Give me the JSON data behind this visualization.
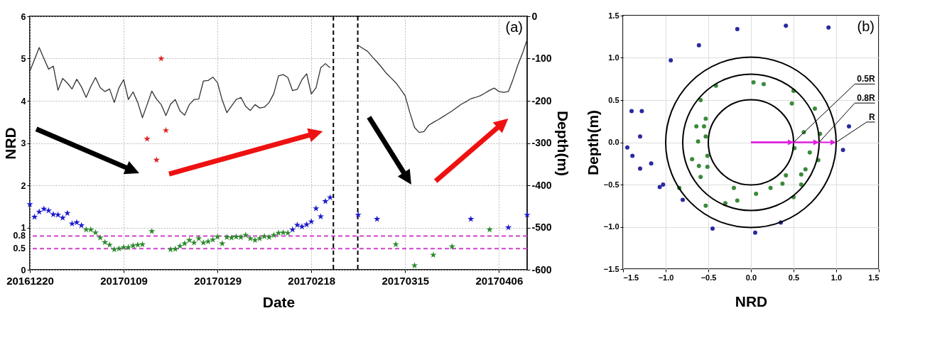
{
  "chart_data": [
    {
      "type": "scatter",
      "xlabel": "Date",
      "ylabel": "NRD",
      "y2label": "Depth(m)",
      "categories": [
        "20161220",
        null,
        null,
        null,
        null,
        null,
        null,
        null,
        null,
        null,
        null,
        null,
        null,
        null,
        null,
        null,
        null,
        null,
        null,
        null,
        "20170109",
        null,
        null,
        null,
        null,
        null,
        null,
        null,
        null,
        null,
        null,
        null,
        null,
        null,
        null,
        null,
        null,
        null,
        null,
        null,
        "20170129",
        null,
        null,
        null,
        null,
        null,
        null,
        null,
        null,
        null,
        null,
        null,
        null,
        null,
        null,
        null,
        null,
        null,
        null,
        null,
        "20170218",
        null,
        null,
        null,
        null,
        null,
        null,
        null,
        null,
        null,
        null,
        null,
        null,
        null,
        null,
        null,
        null,
        null,
        null,
        null,
        "20170315",
        null,
        null,
        null,
        null,
        null,
        null,
        null,
        null,
        null,
        null,
        null,
        null,
        null,
        null,
        null,
        null,
        null,
        null,
        null,
        "20170406",
        null,
        null,
        null,
        null,
        null,
        null
      ],
      "ylim": [
        0,
        6
      ],
      "yticks": [
        0,
        1,
        2,
        3,
        4,
        5,
        6
      ],
      "y2lim": [
        -600,
        0
      ],
      "y2ticks": [
        -600,
        -500,
        -400,
        -300,
        -200,
        -100,
        0
      ],
      "grid": true,
      "marker": "star",
      "ref_lines": [
        {
          "axis": "y",
          "value": 0.8,
          "label": "0.8",
          "color": "#cc44cc",
          "line_style": "dashed"
        },
        {
          "axis": "y",
          "value": 0.5,
          "label": "0.5",
          "color": "#cc44cc",
          "line_style": "dashed"
        }
      ],
      "annotations": [
        "(a)"
      ],
      "series": [
        {
          "type": "line",
          "axis": "y2",
          "color": "#333333",
          "line_style": "solid",
          "marker": "none",
          "values": [
            -130,
            -102,
            -74,
            -100,
            -125,
            -118,
            -175,
            -147,
            -158,
            -172,
            -149,
            -167,
            -192,
            -166,
            -145,
            -169,
            -178,
            -172,
            -204,
            -169,
            -150,
            -197,
            -179,
            -204,
            -240,
            -209,
            -177,
            -196,
            -209,
            -235,
            -208,
            -197,
            -224,
            -234,
            -209,
            -197,
            -196,
            -153,
            -152,
            -144,
            -157,
            -198,
            -228,
            -212,
            -197,
            -192,
            -213,
            -223,
            -209,
            -217,
            -215,
            -204,
            -183,
            -141,
            -138,
            -145,
            -176,
            -173,
            -150,
            -136,
            -184,
            -169,
            -122,
            -112,
            -122,
            null,
            null,
            null,
            null,
            null,
            -69,
            -76,
            -83,
            -96,
            -108,
            -121,
            -135,
            -146,
            -157,
            -172,
            -188,
            -228,
            -263,
            -275,
            -273,
            -258,
            -251,
            -245,
            -238,
            -231,
            -224,
            -216,
            -208,
            -202,
            -195,
            -192,
            -188,
            -182,
            -175,
            -170,
            -178,
            -180,
            -178,
            -149,
            -116,
            -88,
            -55
          ]
        },
        {
          "color": "#1a1acc",
          "values": [
            1.55,
            1.25,
            1.37,
            1.44,
            1.4,
            1.31,
            1.3,
            1.23,
            1.34,
            1.09,
            1.12,
            1.05,
            null,
            null,
            null,
            null,
            null,
            null,
            null,
            null,
            null,
            null,
            null,
            null,
            null,
            null,
            null,
            null,
            null,
            null,
            null,
            null,
            null,
            null,
            null,
            null,
            null,
            null,
            null,
            null,
            null,
            null,
            null,
            null,
            null,
            null,
            null,
            null,
            null,
            null,
            null,
            null,
            null,
            null,
            null,
            null,
            0.95,
            1.06,
            1.02,
            1.07,
            1.14,
            1.45,
            1.26,
            1.62,
            1.71,
            null,
            null,
            null,
            null,
            null,
            1.3,
            null,
            null,
            null,
            1.2,
            null,
            null,
            null,
            null,
            null,
            null,
            null,
            null,
            null,
            null,
            null,
            null,
            null,
            null,
            null,
            null,
            null,
            null,
            null,
            1.2,
            null,
            null,
            null,
            null,
            null,
            null,
            null,
            1.0,
            null,
            null,
            null,
            1.3
          ]
        },
        {
          "color": "#2a8a2a",
          "values": [
            null,
            null,
            null,
            null,
            null,
            null,
            null,
            null,
            null,
            null,
            null,
            null,
            0.95,
            0.95,
            0.88,
            0.76,
            0.65,
            0.59,
            0.48,
            0.5,
            0.53,
            0.53,
            0.57,
            0.59,
            0.6,
            null,
            0.91,
            null,
            null,
            null,
            0.48,
            0.49,
            0.56,
            0.62,
            0.7,
            0.64,
            0.74,
            0.64,
            0.67,
            0.71,
            0.78,
            0.62,
            0.77,
            0.76,
            0.78,
            0.77,
            0.82,
            0.74,
            0.7,
            0.74,
            0.79,
            0.77,
            0.82,
            0.87,
            0.88,
            0.87,
            null,
            null,
            null,
            null,
            null,
            null,
            null,
            null,
            null,
            null,
            null,
            null,
            null,
            null,
            null,
            null,
            null,
            null,
            null,
            null,
            null,
            null,
            0.6,
            null,
            null,
            null,
            0.1,
            null,
            null,
            null,
            0.35,
            null,
            null,
            null,
            0.55,
            null,
            null,
            null,
            null,
            null,
            null,
            null,
            0.95,
            null,
            null,
            null,
            null,
            null,
            null,
            null,
            null
          ]
        },
        {
          "color": "#dd2222",
          "values": [
            null,
            null,
            null,
            null,
            null,
            null,
            null,
            null,
            null,
            null,
            null,
            null,
            null,
            null,
            null,
            null,
            null,
            null,
            null,
            null,
            null,
            null,
            null,
            null,
            null,
            3.1,
            null,
            2.6,
            5.0,
            3.3,
            null,
            null,
            null,
            null,
            null,
            null,
            null,
            null,
            null,
            null,
            null,
            null,
            null,
            null,
            null,
            null,
            null,
            null,
            null,
            null,
            null,
            null,
            null,
            null,
            null,
            null,
            null,
            null,
            null,
            null,
            null,
            null,
            null,
            null,
            null,
            null,
            null,
            null,
            null,
            null,
            null,
            null,
            null,
            null,
            null,
            null,
            null,
            null,
            null,
            null,
            null,
            null,
            null,
            null,
            null,
            null,
            null,
            null,
            null,
            null,
            null,
            null,
            null,
            null,
            null,
            null,
            null,
            null,
            null,
            null,
            null,
            null,
            null,
            null,
            null,
            null,
            null
          ]
        }
      ]
    },
    {
      "type": "scatter",
      "xlabel": "NRD",
      "ylabel": "Depth(m)",
      "xlim": [
        -1.5,
        1.5
      ],
      "xticks": [
        {
          "value": -1.5,
          "label": "−1.5"
        },
        {
          "value": -1,
          "label": "−1.0"
        },
        {
          "value": -0.5,
          "label": "−0.5"
        },
        {
          "value": 0,
          "label": "0.0"
        },
        {
          "value": 0.5,
          "label": "0.5"
        },
        {
          "value": 1,
          "label": "1.0"
        },
        {
          "value": 1.5,
          "label": "1.5"
        }
      ],
      "ylim": [
        -1.5,
        1.5
      ],
      "yticks": [
        {
          "value": -1.5,
          "label": "−1.5"
        },
        {
          "value": -1,
          "label": "−1.0"
        },
        {
          "value": -0.5,
          "label": "−0.5"
        },
        {
          "value": 0,
          "label": "0.0"
        },
        {
          "value": 0.5,
          "label": "0.5"
        },
        {
          "value": 1,
          "label": "1.0"
        },
        {
          "value": 1.5,
          "label": "1.5"
        }
      ],
      "grid": true,
      "marker": "circle",
      "annotations": [
        "(b)",
        "0.5R",
        "0.8R",
        "R"
      ],
      "series": [
        {
          "color": "#2a2aa0",
          "x": [
            -0.16,
            0.41,
            0.91,
            -0.61,
            -0.94,
            -1.4,
            -1.28,
            -1.3,
            -1.45,
            -1.39,
            -1.3,
            -1.17,
            -1.07,
            -1.03,
            -0.8,
            -0.45,
            0.05,
            0.35,
            1.08,
            1.15
          ],
          "values": [
            1.34,
            1.38,
            1.36,
            1.15,
            0.97,
            0.37,
            0.37,
            0.07,
            -0.06,
            -0.16,
            -0.31,
            -0.25,
            -0.53,
            -0.5,
            -0.68,
            -1.02,
            -1.07,
            -0.95,
            -0.09,
            0.19
          ]
        },
        {
          "color": "#3a8a3a",
          "x": [
            0.03,
            0.15,
            -0.41,
            0.5,
            -0.59,
            0.48,
            0.75,
            -0.53,
            -0.64,
            -0.55,
            -0.62,
            -0.53,
            0.62,
            0.81,
            0.51,
            -0.51,
            -0.69,
            -0.61,
            -0.51,
            0.69,
            0.79,
            -0.59,
            0.64,
            0.59,
            0.41,
            0.37,
            0.59,
            -0.2,
            0.23,
            0.06,
            -0.84,
            -0.16,
            -0.3,
            -0.53,
            0.5
          ],
          "values": [
            0.71,
            0.69,
            0.67,
            0.61,
            0.5,
            0.46,
            0.4,
            0.28,
            0.19,
            0.19,
            0.01,
            0.07,
            0.12,
            0.1,
            -0.07,
            -0.16,
            -0.2,
            -0.28,
            -0.29,
            -0.12,
            -0.21,
            -0.41,
            -0.32,
            -0.38,
            -0.39,
            -0.49,
            -0.5,
            -0.54,
            -0.54,
            -0.61,
            -0.54,
            -0.69,
            -0.72,
            -0.75,
            -0.65
          ]
        }
      ]
    }
  ]
}
